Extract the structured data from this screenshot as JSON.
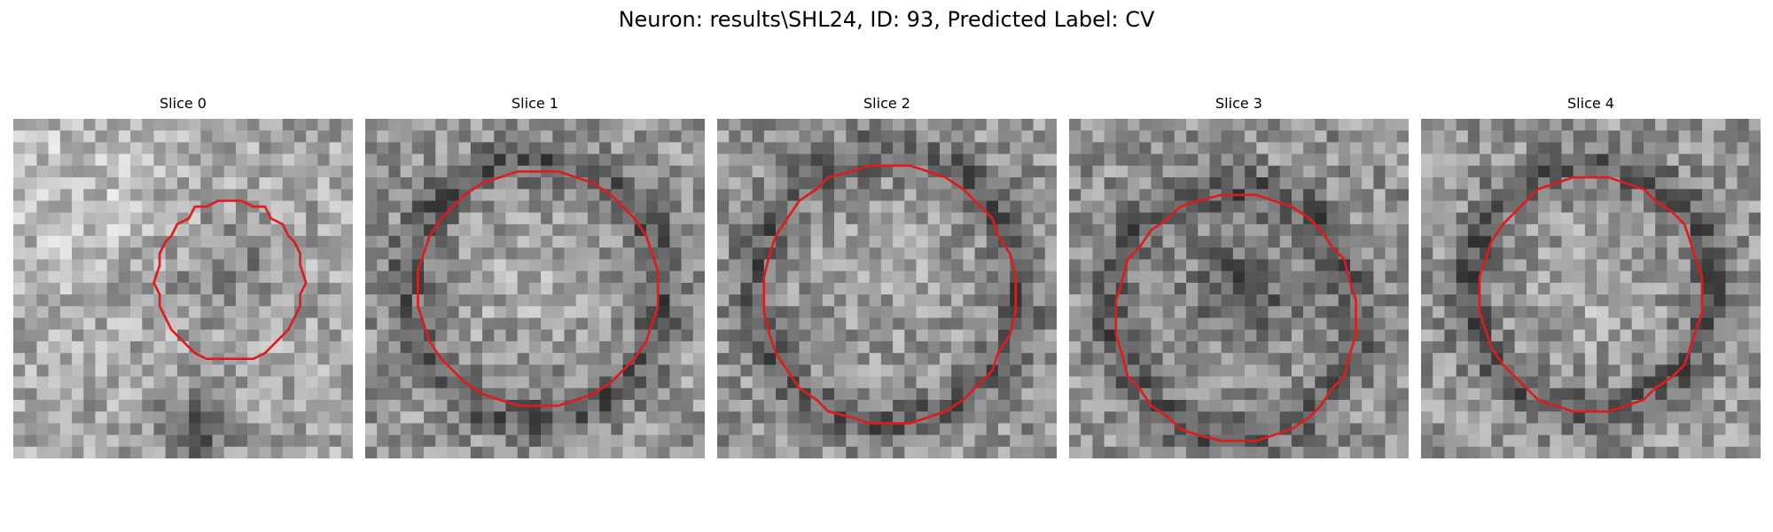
{
  "figure": {
    "title": "Neuron: results\\SHL24, ID: 93, Predicted Label: CV"
  },
  "panels": [
    {
      "title": "Slice 0"
    },
    {
      "title": "Slice 1"
    },
    {
      "title": "Slice 2"
    },
    {
      "title": "Slice 3"
    },
    {
      "title": "Slice 4"
    }
  ],
  "colors": {
    "contour": "#e01b1b",
    "background": "#ffffff"
  },
  "image": {
    "colormap": "grayscale",
    "grid": "29x29 pixels"
  }
}
